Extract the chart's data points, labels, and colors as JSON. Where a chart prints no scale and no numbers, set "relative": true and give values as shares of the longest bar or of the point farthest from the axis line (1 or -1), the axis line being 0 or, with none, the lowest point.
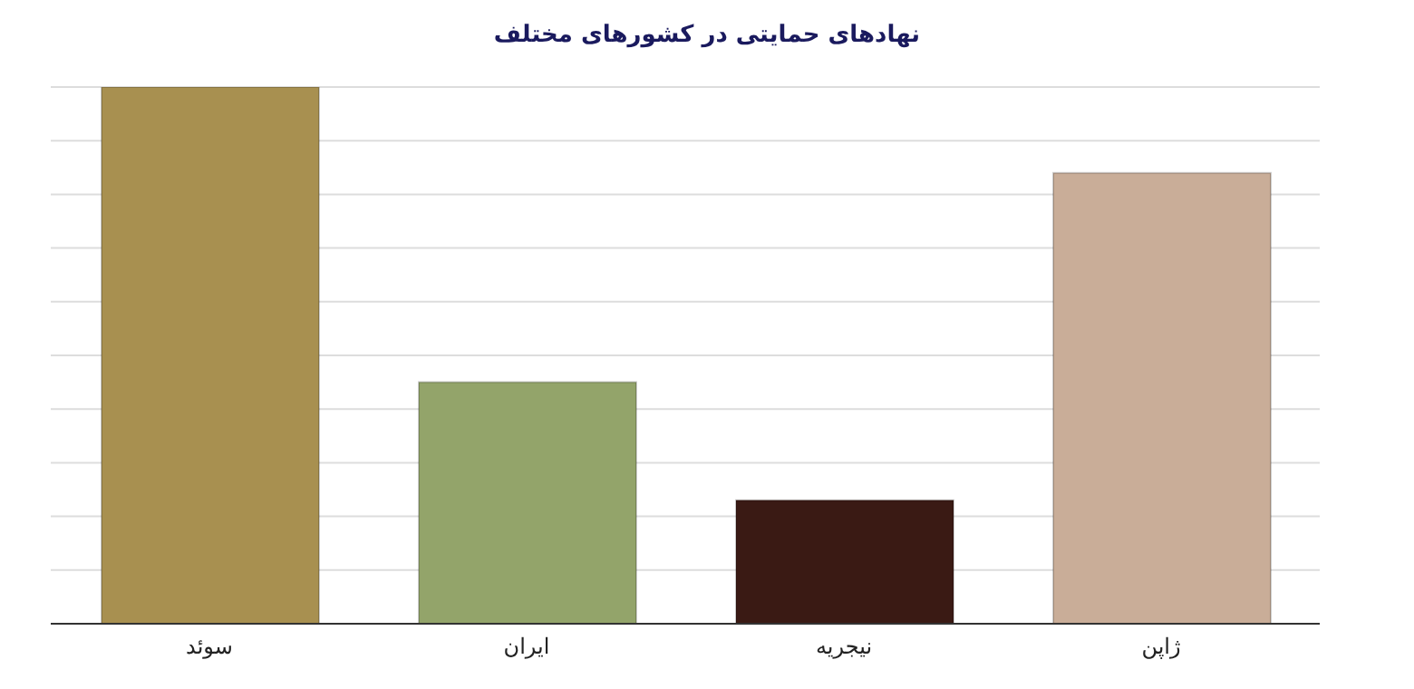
{
  "chart_data": {
    "type": "bar",
    "title": "نهادهای حمایتی در کشورهای مختلف",
    "categories": [
      "سوئد",
      "ایران",
      "نیجریه",
      "ژاپن"
    ],
    "values": [
      1,
      0.45,
      0.23,
      0.84
    ],
    "colors": [
      "#a89050",
      "#93a46a",
      "#3a1a14",
      "#c9ad98"
    ],
    "relative": true,
    "grid": "y"
  }
}
